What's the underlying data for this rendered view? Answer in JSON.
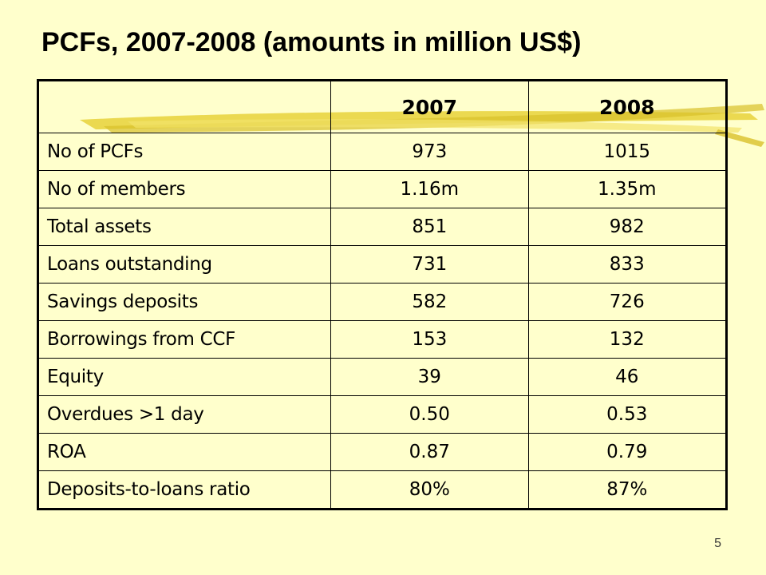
{
  "slide": {
    "title": "PCFs, 2007-2008 (amounts in million US$)",
    "page_number": "5"
  },
  "table": {
    "corner_header": "",
    "columns": [
      "2007",
      "2008"
    ],
    "rows": [
      {
        "label": "No of PCFs",
        "values": [
          "973",
          "1015"
        ]
      },
      {
        "label": "No of members",
        "values": [
          "1.16m",
          "1.35m"
        ]
      },
      {
        "label": "Total assets",
        "values": [
          "851",
          "982"
        ]
      },
      {
        "label": "Loans outstanding",
        "values": [
          "731",
          "833"
        ]
      },
      {
        "label": "Savings deposits",
        "values": [
          "582",
          "726"
        ]
      },
      {
        "label": "Borrowings from CCF",
        "values": [
          "153",
          "132"
        ]
      },
      {
        "label": "Equity",
        "values": [
          "39",
          "46"
        ]
      },
      {
        "label": "Overdues >1 day",
        "values": [
          "0.50",
          "0.53"
        ]
      },
      {
        "label": "ROA",
        "values": [
          "0.87",
          "0.79"
        ]
      },
      {
        "label": "Deposits-to-loans ratio",
        "values": [
          "80%",
          "87%"
        ]
      }
    ]
  },
  "theme": {
    "background": "#FFFFCC",
    "accent_stroke": "#E8D23A"
  }
}
